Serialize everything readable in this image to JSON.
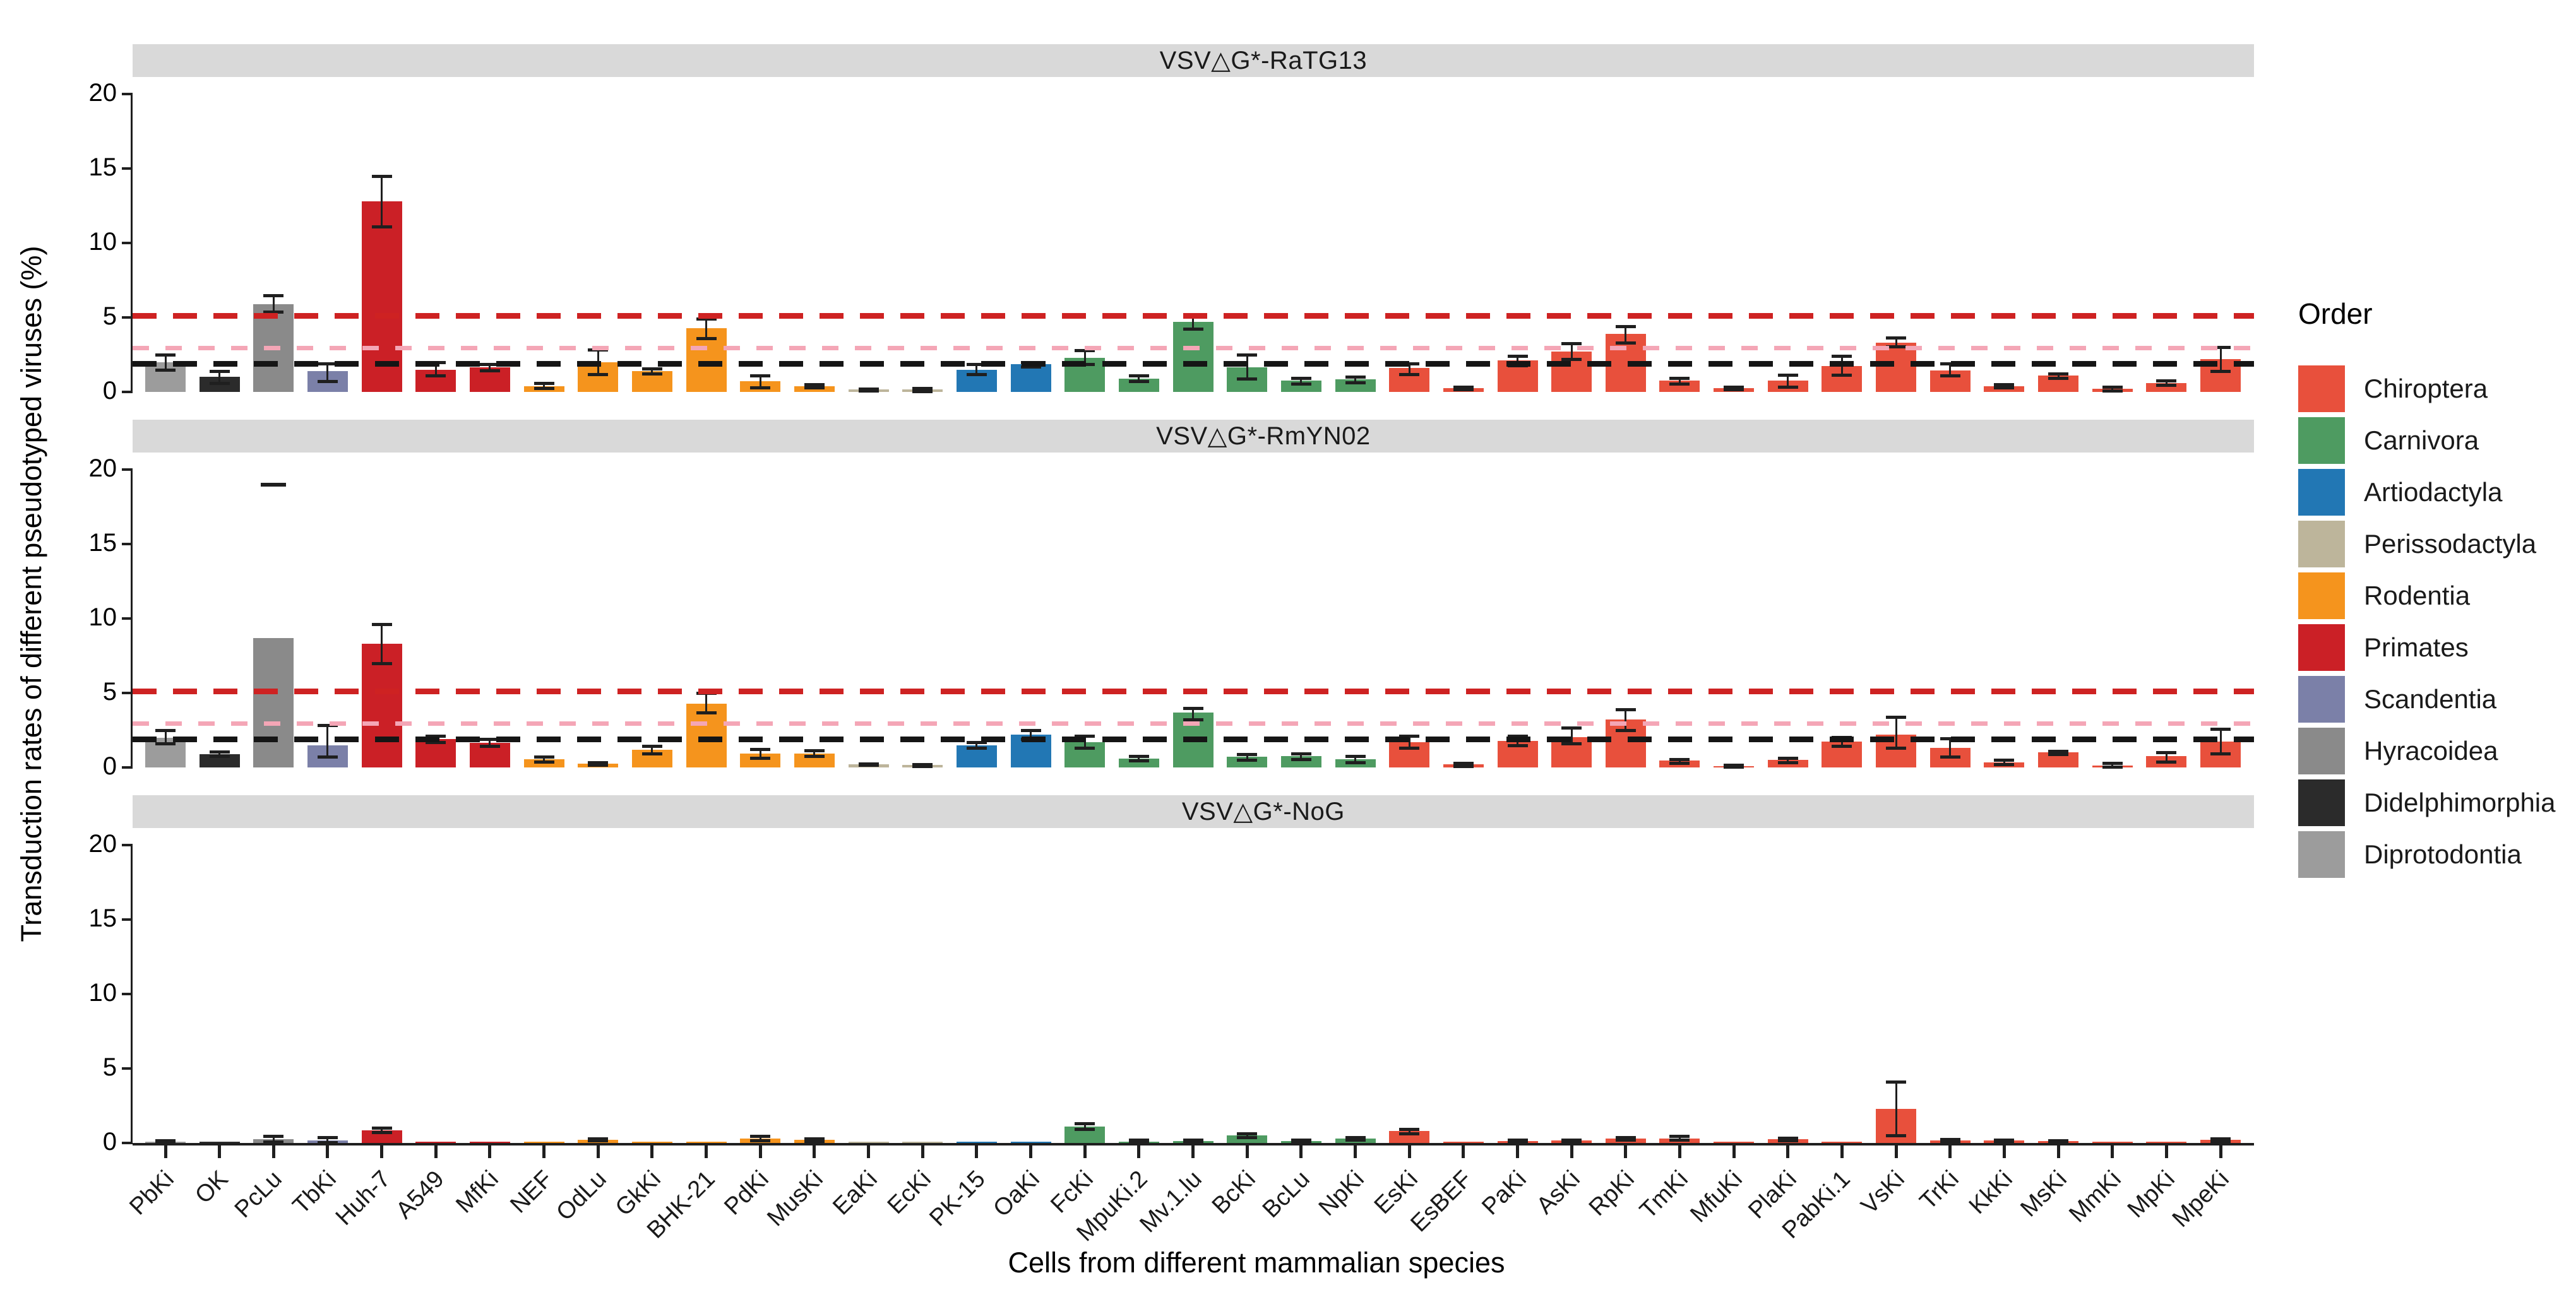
{
  "chart_data": {
    "type": "bar",
    "title": "",
    "xlabel": "Cells from different mammalian species",
    "ylabel": "Transduction rates of different pseudotyped viruses (%)",
    "ylim": [
      0,
      20
    ],
    "yticks": [
      0,
      5,
      10,
      15,
      20
    ],
    "grid": false,
    "legend": {
      "title": "Order",
      "position": "right",
      "entries": [
        {
          "label": "Chiroptera",
          "color": "#E8503C"
        },
        {
          "label": "Carnivora",
          "color": "#4E9B61"
        },
        {
          "label": "Artiodactyla",
          "color": "#2277B4"
        },
        {
          "label": "Perissodactyla",
          "color": "#BDB59B"
        },
        {
          "label": "Rodentia",
          "color": "#F5941D"
        },
        {
          "label": "Primates",
          "color": "#CB2026"
        },
        {
          "label": "Scandentia",
          "color": "#7B80A8"
        },
        {
          "label": "Hyracoidea",
          "color": "#8A8A8A"
        },
        {
          "label": "Didelphimorphia",
          "color": "#2B2B2B"
        },
        {
          "label": "Diprotodontia",
          "color": "#9C9C9C"
        }
      ]
    },
    "categories": [
      "PbKi",
      "OK",
      "PcLu",
      "TbKi",
      "Huh-7",
      "A549",
      "MfKi",
      "NEF",
      "OdLu",
      "GkKi",
      "BHK-21",
      "PdKi",
      "MusKi",
      "EaKi",
      "EcKi",
      "PK-15",
      "OaKi",
      "FcKi",
      "MpuKi.2",
      "Mv.1.lu",
      "BcKi",
      "BcLu",
      "NpKi",
      "EsKi",
      "EsBEF",
      "PaKi",
      "AsKi",
      "RpKi",
      "TmKi",
      "MfuKi",
      "PlaKi",
      "PabKi.1",
      "VsKi",
      "TrKi",
      "KkKi",
      "MsKi",
      "MmKi",
      "MpKi",
      "MpeKi"
    ],
    "category_orders": [
      "Diprotodontia",
      "Didelphimorphia",
      "Hyracoidea",
      "Scandentia",
      "Primates",
      "Primates",
      "Primates",
      "Rodentia",
      "Rodentia",
      "Rodentia",
      "Rodentia",
      "Rodentia",
      "Rodentia",
      "Perissodactyla",
      "Perissodactyla",
      "Artiodactyla",
      "Artiodactyla",
      "Carnivora",
      "Carnivora",
      "Carnivora",
      "Carnivora",
      "Carnivora",
      "Carnivora",
      "Chiroptera",
      "Chiroptera",
      "Chiroptera",
      "Chiroptera",
      "Chiroptera",
      "Chiroptera",
      "Chiroptera",
      "Chiroptera",
      "Chiroptera",
      "Chiroptera",
      "Chiroptera",
      "Chiroptera",
      "Chiroptera",
      "Chiroptera",
      "Chiroptera",
      "Chiroptera"
    ],
    "thresholds": [
      {
        "value": 5.1,
        "color": "#CE2222",
        "weight": 9
      },
      {
        "value": 2.95,
        "color": "#F4A6B6",
        "weight": 7
      },
      {
        "value": 1.9,
        "color": "#151515",
        "weight": 9
      }
    ],
    "panels": [
      {
        "label": "VSV△G*-RaTG13",
        "show_thresholds": true,
        "values": [
          2.0,
          1.0,
          5.9,
          1.4,
          12.8,
          1.5,
          1.65,
          0.4,
          2.0,
          1.4,
          4.3,
          0.7,
          0.4,
          0.15,
          0.15,
          1.5,
          1.85,
          2.3,
          0.9,
          4.7,
          1.65,
          0.75,
          0.85,
          1.6,
          0.25,
          2.1,
          2.7,
          3.9,
          0.75,
          0.25,
          0.75,
          1.75,
          3.3,
          1.45,
          0.4,
          1.1,
          0.2,
          0.6,
          2.2
        ],
        "err_lo": [
          1.5,
          0.6,
          5.4,
          0.7,
          11.1,
          1.1,
          1.45,
          0.25,
          1.2,
          1.25,
          3.6,
          0.3,
          0.3,
          0.1,
          0.05,
          1.2,
          1.7,
          1.85,
          0.7,
          4.25,
          0.9,
          0.55,
          0.65,
          1.2,
          0.15,
          1.8,
          2.2,
          3.3,
          0.55,
          0.15,
          0.35,
          1.15,
          3.05,
          1.1,
          0.3,
          0.95,
          0.1,
          0.45,
          1.4
        ],
        "err_hi": [
          2.5,
          1.4,
          6.5,
          1.9,
          14.5,
          2.0,
          1.85,
          0.6,
          2.85,
          1.55,
          4.9,
          1.1,
          0.5,
          0.2,
          0.25,
          1.85,
          2.0,
          2.8,
          1.1,
          5.2,
          2.5,
          0.95,
          1.0,
          1.9,
          0.35,
          2.4,
          3.25,
          4.4,
          0.95,
          0.35,
          1.15,
          2.4,
          3.65,
          1.9,
          0.5,
          1.25,
          0.35,
          0.75,
          3.0
        ],
        "extra_caps": []
      },
      {
        "label": "VSV△G*-RmYN02",
        "show_thresholds": true,
        "values": [
          2.0,
          0.9,
          8.7,
          1.5,
          8.3,
          1.9,
          1.65,
          0.55,
          0.25,
          1.2,
          4.3,
          0.95,
          0.95,
          0.2,
          0.15,
          1.5,
          2.2,
          1.7,
          0.6,
          3.7,
          0.7,
          0.75,
          0.55,
          1.7,
          0.2,
          1.8,
          2.05,
          3.2,
          0.45,
          0.1,
          0.5,
          1.75,
          2.2,
          1.3,
          0.35,
          1.0,
          0.12,
          0.75,
          1.75
        ],
        "err_lo": [
          1.6,
          0.75,
          null,
          0.7,
          7.0,
          1.7,
          1.45,
          0.4,
          0.15,
          0.95,
          3.7,
          0.65,
          0.75,
          0.15,
          0.1,
          1.3,
          1.9,
          1.3,
          0.45,
          3.2,
          0.5,
          0.55,
          0.35,
          1.3,
          0.1,
          1.5,
          1.6,
          2.5,
          0.3,
          0.05,
          0.35,
          1.45,
          1.3,
          0.7,
          0.2,
          0.9,
          0.05,
          0.4,
          0.95
        ],
        "err_hi": [
          2.5,
          1.05,
          null,
          2.85,
          9.6,
          2.1,
          1.9,
          0.7,
          0.35,
          1.45,
          5.0,
          1.25,
          1.15,
          0.25,
          0.2,
          1.7,
          2.5,
          2.1,
          0.75,
          4.0,
          0.9,
          0.95,
          0.75,
          2.1,
          0.3,
          2.1,
          2.65,
          3.9,
          0.55,
          0.15,
          0.65,
          2.05,
          3.4,
          1.95,
          0.5,
          1.1,
          0.3,
          1.0,
          2.6
        ],
        "extra_caps": [
          {
            "index": 2,
            "value": 19.0
          }
        ]
      },
      {
        "label": "VSV△G*-NoG",
        "show_thresholds": false,
        "values": [
          0.1,
          0.08,
          0.25,
          0.15,
          0.85,
          0.05,
          0.08,
          0.05,
          0.2,
          0.08,
          0.05,
          0.3,
          0.2,
          0.04,
          0.05,
          0.06,
          0.05,
          1.1,
          0.1,
          0.12,
          0.5,
          0.12,
          0.3,
          0.8,
          0.05,
          0.12,
          0.15,
          0.3,
          0.3,
          0.06,
          0.25,
          0.1,
          2.3,
          0.15,
          0.15,
          0.12,
          0.1,
          0.06,
          0.2
        ],
        "err_lo": [
          0.05,
          null,
          0.1,
          0.05,
          0.7,
          null,
          null,
          null,
          0.15,
          null,
          null,
          0.15,
          0.1,
          null,
          null,
          null,
          null,
          0.95,
          0.05,
          0.06,
          0.4,
          0.05,
          0.2,
          0.65,
          null,
          0.06,
          0.1,
          0.2,
          0.2,
          null,
          0.15,
          null,
          0.5,
          0.08,
          0.08,
          0.06,
          null,
          null,
          0.12
        ],
        "err_hi": [
          0.15,
          null,
          0.45,
          0.4,
          1.0,
          null,
          null,
          null,
          0.3,
          null,
          null,
          0.45,
          0.3,
          null,
          null,
          null,
          null,
          1.3,
          0.2,
          0.2,
          0.62,
          0.2,
          0.4,
          0.95,
          null,
          0.2,
          0.2,
          0.4,
          0.45,
          null,
          0.35,
          null,
          4.1,
          0.25,
          0.22,
          0.18,
          null,
          null,
          0.3
        ]
      }
    ]
  }
}
